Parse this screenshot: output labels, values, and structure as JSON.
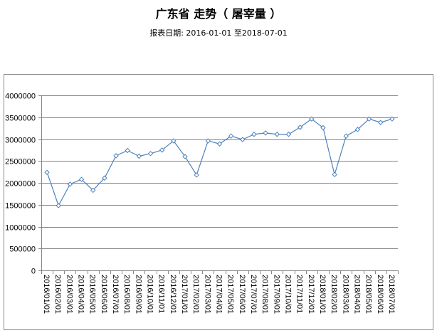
{
  "title": "广东省 走势（ 屠宰量 ）",
  "subtitle": "报表日期: 2016-01-01 至2018-07-01",
  "colors": {
    "series": "#4f81bd",
    "grid": "#868686",
    "frame": "#888888"
  },
  "chart_data": {
    "type": "line",
    "title": "广东省 走势（ 屠宰量 ）",
    "subtitle": "报表日期: 2016-01-01 至2018-07-01",
    "xlabel": "",
    "ylabel": "",
    "ylim": [
      0,
      4000000
    ],
    "yticks": [
      0,
      500000,
      1000000,
      1500000,
      2000000,
      2500000,
      3000000,
      3500000,
      4000000
    ],
    "grid": true,
    "legend": "none",
    "marker": "diamond-open",
    "categories": [
      "2016/01/01",
      "2016/02/01",
      "2016/03/01",
      "2016/04/01",
      "2016/05/01",
      "2016/06/01",
      "2016/07/01",
      "2016/08/01",
      "2016/09/01",
      "2016/10/01",
      "2016/11/01",
      "2016/12/01",
      "2017/01/01",
      "2017/02/01",
      "2017/03/01",
      "2017/04/01",
      "2017/05/01",
      "2017/06/01",
      "2017/07/01",
      "2017/08/01",
      "2017/09/01",
      "2017/10/01",
      "2017/11/01",
      "2017/12/01",
      "2018/01/01",
      "2018/02/01",
      "2018/03/01",
      "2018/04/01",
      "2018/05/01",
      "2018/06/01",
      "2018/07/01"
    ],
    "values": [
      2240000,
      1480000,
      1970000,
      2080000,
      1830000,
      2110000,
      2620000,
      2740000,
      2610000,
      2670000,
      2750000,
      2960000,
      2600000,
      2180000,
      2960000,
      2890000,
      3070000,
      2990000,
      3110000,
      3140000,
      3110000,
      3110000,
      3270000,
      3460000,
      3260000,
      2190000,
      3070000,
      3220000,
      3460000,
      3380000,
      3460000
    ]
  }
}
